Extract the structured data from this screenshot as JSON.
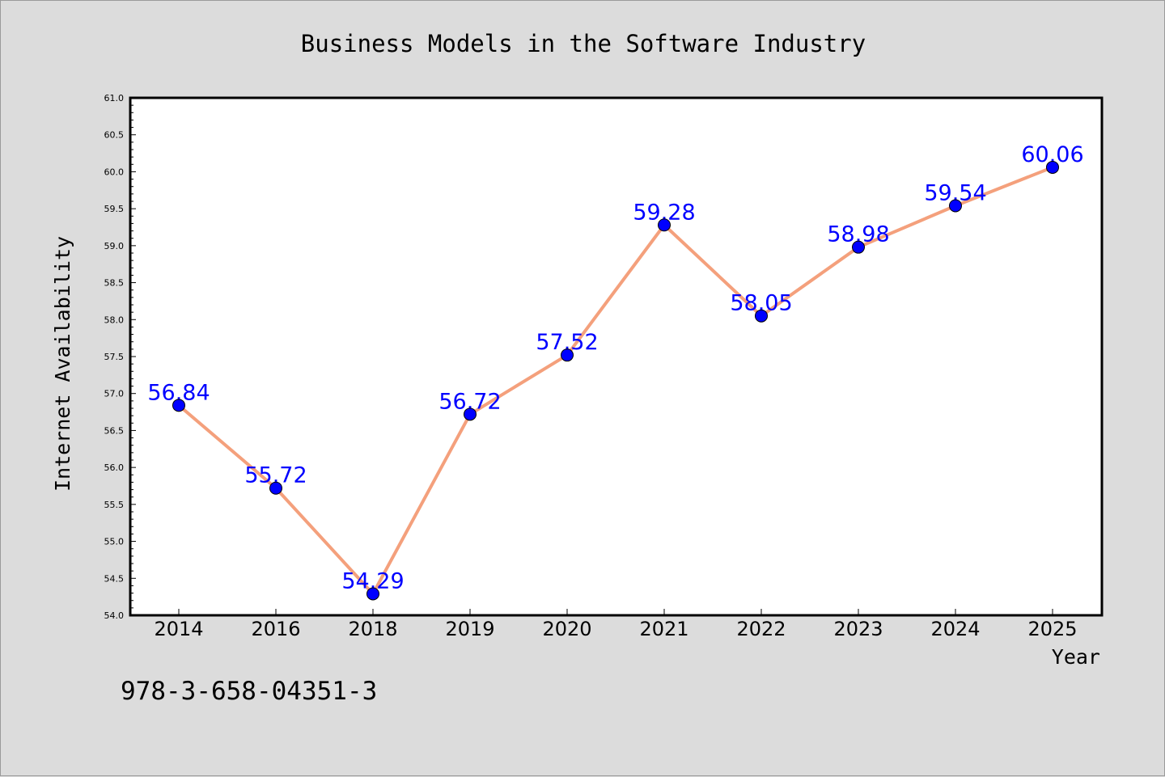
{
  "chart_data": {
    "type": "line",
    "title": "Business Models in the Software Industry",
    "xlabel": "Year",
    "ylabel": "Internet Availability",
    "categories": [
      "2014",
      "2016",
      "2018",
      "2019",
      "2020",
      "2021",
      "2022",
      "2023",
      "2024",
      "2025"
    ],
    "values": [
      56.84,
      55.72,
      54.29,
      56.72,
      57.52,
      59.28,
      58.05,
      58.98,
      59.54,
      60.06
    ],
    "data_labels": [
      "56.84",
      "55.72",
      "54.29",
      "56.72",
      "57.52",
      "59.28",
      "58.05",
      "58.98",
      "59.54",
      "60.06"
    ],
    "ylim": [
      54.0,
      61.0
    ],
    "yticks": [
      "54.0",
      "54.5",
      "55.0",
      "55.5",
      "56.0",
      "56.5",
      "57.0",
      "57.5",
      "58.0",
      "58.5",
      "59.0",
      "59.5",
      "60.0",
      "60.5",
      "61.0"
    ],
    "grid": false,
    "colors": {
      "line": "#f4a07c",
      "marker": "#0000ff",
      "data_label": "#0000ff",
      "background": "#dcdcdc",
      "plot_background": "#ffffff"
    }
  },
  "footer": {
    "isbn": "978-3-658-04351-3"
  }
}
